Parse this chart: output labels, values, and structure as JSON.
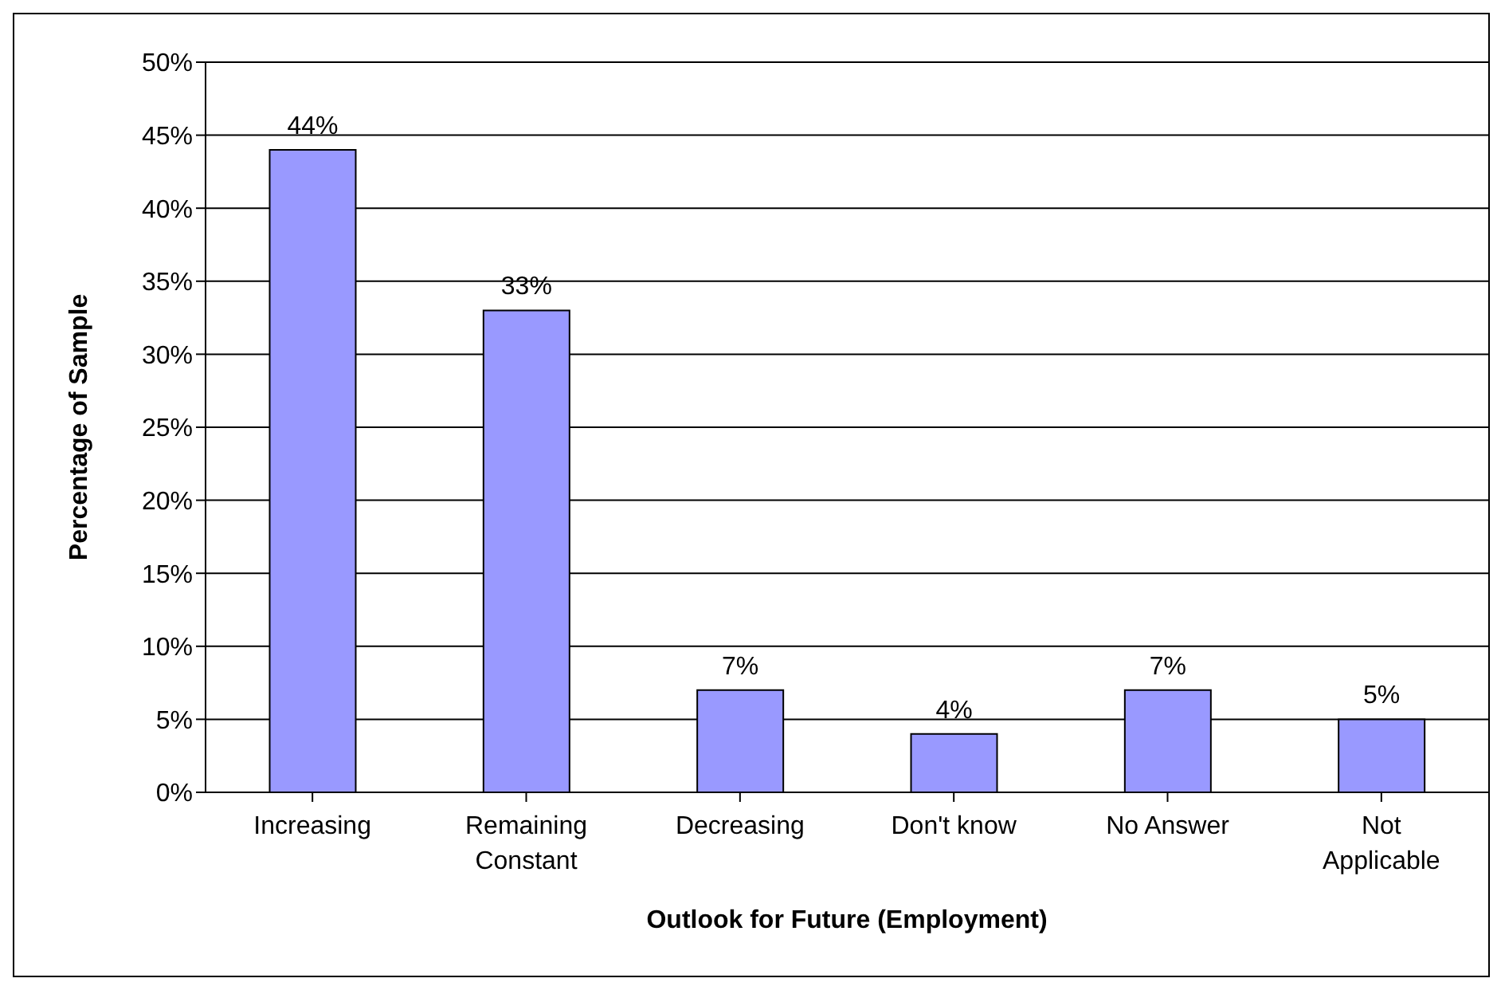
{
  "chart_data": {
    "type": "bar",
    "xlabel": "Outlook for Future (Employment)",
    "ylabel": "Percentage of Sample",
    "categories": [
      "Increasing",
      "Remaining Constant",
      "Decreasing",
      "Don't know",
      "No Answer",
      "Not Applicable"
    ],
    "values": [
      44,
      33,
      7,
      4,
      7,
      5
    ],
    "value_labels": [
      "44%",
      "33%",
      "7%",
      "4%",
      "7%",
      "5%"
    ],
    "color": "#9999ff",
    "ylim": [
      0,
      50
    ],
    "yticks": [
      {
        "value": 0,
        "label": "0%"
      },
      {
        "value": 5,
        "label": "5%"
      },
      {
        "value": 10,
        "label": "10%"
      },
      {
        "value": 15,
        "label": "15%"
      },
      {
        "value": 20,
        "label": "20%"
      },
      {
        "value": 25,
        "label": "25%"
      },
      {
        "value": 30,
        "label": "30%"
      },
      {
        "value": 35,
        "label": "35%"
      },
      {
        "value": 40,
        "label": "40%"
      },
      {
        "value": 45,
        "label": "45%"
      },
      {
        "value": 50,
        "label": "50%"
      }
    ],
    "grid": "y"
  }
}
